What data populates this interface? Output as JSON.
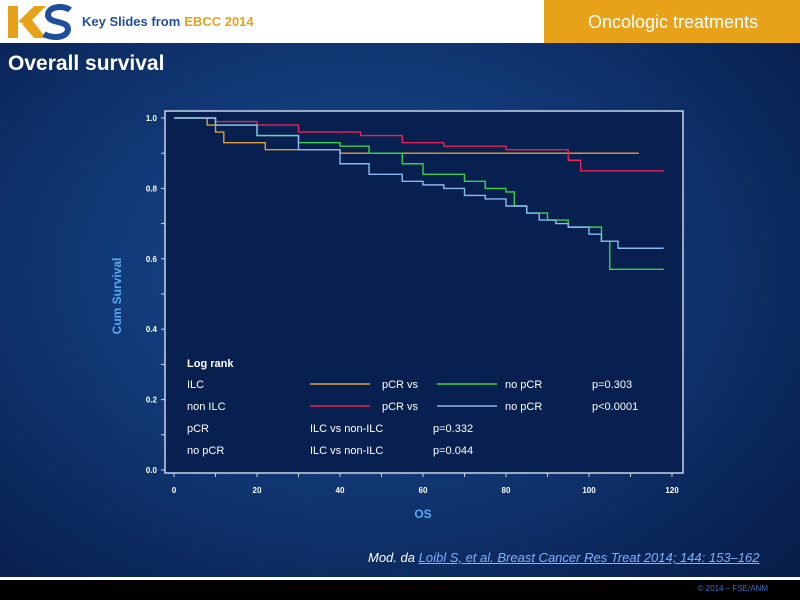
{
  "header": {
    "brand_prefix": "Key Slides from",
    "brand_event": "EBCC 2014",
    "section": "Oncologic treatments",
    "logo_text": "KS"
  },
  "page_title": "Overall survival",
  "citation": {
    "prefix": "Mod. da",
    "link_text": "Loibl S, et al. Breast Cancer Res Treat 2014; 144: 153–162"
  },
  "footer": {
    "copyright": "© 2014 – FSE/ANM"
  },
  "colors": {
    "ilc_pcr": "#d9a040",
    "non_ilc_pcr": "#e8205a",
    "ilc_no_pcr": "#3ad14a",
    "non_ilc_no_pcr": "#8ab8f0",
    "accent": "#e8a21a",
    "brand_blue": "#1f4e9c"
  },
  "chart_data": {
    "type": "line",
    "xlabel": "OS",
    "ylabel": "Cum Survival",
    "xlim": [
      0,
      122
    ],
    "ylim": [
      0,
      1.03
    ],
    "x_ticks": [
      0,
      20,
      40,
      60,
      80,
      100,
      120
    ],
    "y_ticks": [
      0.0,
      0.2,
      0.4,
      0.6,
      0.8,
      1.0
    ],
    "x_tick_labels": [
      "0",
      "20",
      "40",
      "60",
      "80",
      "100",
      "120"
    ],
    "y_tick_labels": [
      "0.0",
      "0.2",
      "0.4",
      "0.6",
      "0.8",
      "1.0"
    ],
    "series": [
      {
        "color_key": "ilc_pcr",
        "x": [
          0,
          8,
          10,
          12,
          22,
          40,
          60,
          80,
          100,
          112
        ],
        "y": [
          1.0,
          0.98,
          0.96,
          0.93,
          0.91,
          0.9,
          0.9,
          0.9,
          0.9,
          0.9
        ]
      },
      {
        "color_key": "non_ilc_pcr",
        "x": [
          0,
          10,
          20,
          30,
          36,
          45,
          55,
          65,
          80,
          90,
          95,
          98,
          118
        ],
        "y": [
          1.0,
          0.99,
          0.98,
          0.96,
          0.96,
          0.95,
          0.93,
          0.92,
          0.91,
          0.91,
          0.88,
          0.85,
          0.85
        ]
      },
      {
        "color_key": "ilc_no_pcr",
        "x": [
          0,
          10,
          20,
          30,
          40,
          47,
          55,
          60,
          65,
          70,
          75,
          80,
          82,
          85,
          90,
          95,
          100,
          103,
          105,
          118
        ],
        "y": [
          1.0,
          0.98,
          0.95,
          0.93,
          0.92,
          0.9,
          0.87,
          0.84,
          0.84,
          0.82,
          0.8,
          0.79,
          0.75,
          0.73,
          0.71,
          0.69,
          0.69,
          0.65,
          0.57,
          0.57
        ]
      },
      {
        "color_key": "non_ilc_no_pcr",
        "x": [
          0,
          10,
          20,
          30,
          40,
          47,
          55,
          60,
          65,
          70,
          75,
          80,
          85,
          88,
          92,
          95,
          100,
          103,
          107,
          118
        ],
        "y": [
          1.0,
          0.98,
          0.95,
          0.91,
          0.87,
          0.84,
          0.82,
          0.81,
          0.8,
          0.78,
          0.77,
          0.75,
          0.73,
          0.71,
          0.7,
          0.69,
          0.67,
          0.65,
          0.63,
          0.63
        ]
      }
    ],
    "legend": {
      "title": "Log rank",
      "rows": [
        {
          "group": "ILC",
          "label_a": "pCR vs",
          "color_a": "ilc_pcr",
          "label_b": "no pCR",
          "color_b": "ilc_no_pcr",
          "p": "p=0.303"
        },
        {
          "group": "non ILC",
          "label_a": "pCR vs",
          "color_a": "non_ilc_pcr",
          "label_b": "no pCR",
          "color_b": "non_ilc_no_pcr",
          "p": "p<0.0001"
        },
        {
          "group": "pCR",
          "label_a": "ILC vs non-ILC",
          "p": "p=0.332"
        },
        {
          "group": "no pCR",
          "label_a": "ILC vs non-ILC",
          "p": "p=0.044"
        }
      ]
    }
  }
}
